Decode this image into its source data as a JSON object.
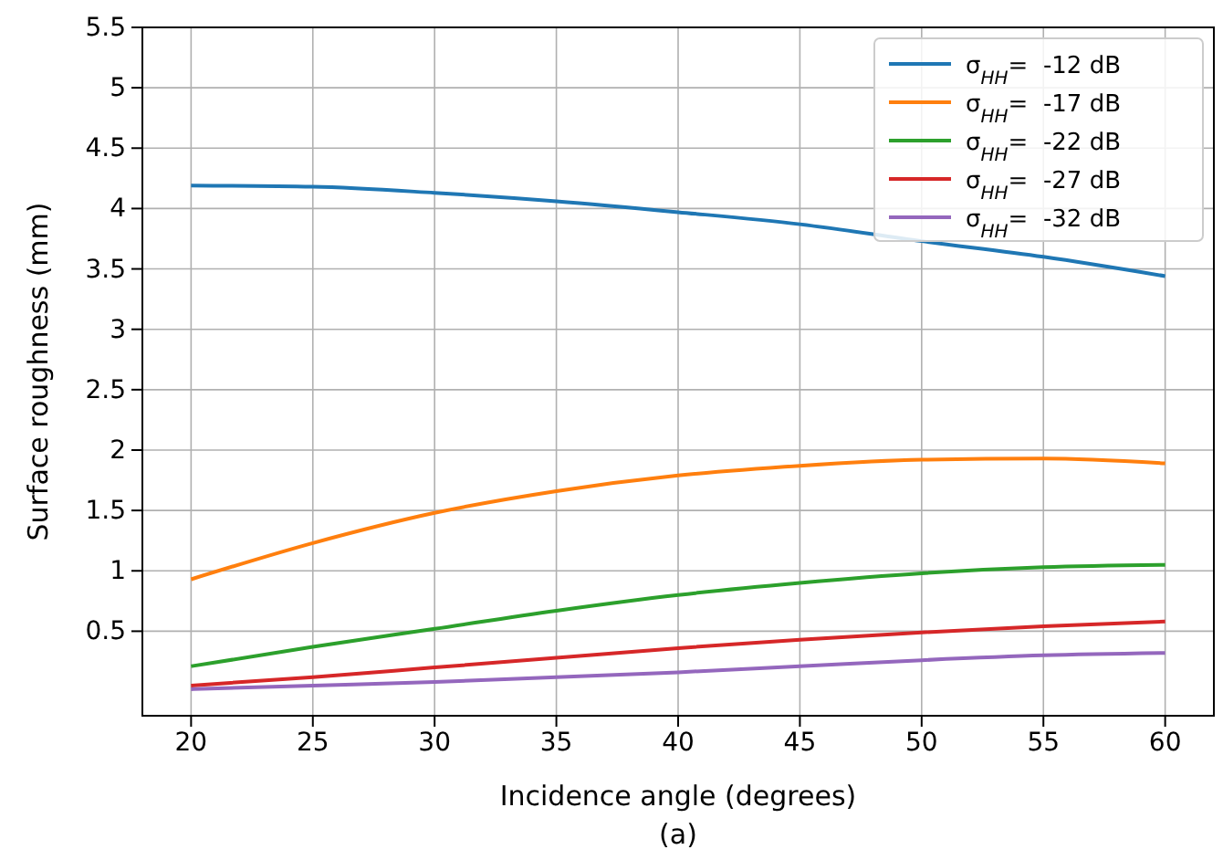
{
  "chart_data": {
    "type": "line",
    "xlabel": "Incidence angle (degrees)",
    "ylabel": "Surface roughness (mm)",
    "annotations": [
      "(a)"
    ],
    "x": [
      20,
      25,
      30,
      35,
      40,
      45,
      50,
      55,
      60
    ],
    "series": [
      {
        "name": "σ$_{HH}$=  -12 dB",
        "color": "#1f77b4",
        "values": [
          4.19,
          4.18,
          4.13,
          4.06,
          3.97,
          3.87,
          3.73,
          3.6,
          3.44
        ]
      },
      {
        "name": "σ$_{HH}$=  -17 dB",
        "color": "#ff7f0e",
        "values": [
          0.93,
          1.23,
          1.48,
          1.66,
          1.79,
          1.87,
          1.92,
          1.93,
          1.89
        ]
      },
      {
        "name": "σ$_{HH}$=  -22 dB",
        "color": "#2ca02c",
        "values": [
          0.21,
          0.37,
          0.52,
          0.67,
          0.8,
          0.9,
          0.98,
          1.03,
          1.05
        ]
      },
      {
        "name": "σ$_{HH}$=  -27 dB",
        "color": "#d62728",
        "values": [
          0.05,
          0.12,
          0.2,
          0.28,
          0.36,
          0.43,
          0.49,
          0.54,
          0.58
        ]
      },
      {
        "name": "σ$_{HH}$=  -32 dB",
        "color": "#9467bd",
        "values": [
          0.02,
          0.05,
          0.08,
          0.12,
          0.16,
          0.21,
          0.26,
          0.3,
          0.32
        ]
      }
    ],
    "xlim": [
      18,
      62
    ],
    "xticks": [
      20,
      25,
      30,
      35,
      40,
      45,
      50,
      55,
      60
    ],
    "ylim": [
      -0.2,
      5.5
    ],
    "yticks": [
      0.5,
      1.0,
      1.5,
      2.0,
      2.5,
      3.0,
      3.5,
      4.0,
      4.5,
      5.0,
      5.5
    ],
    "grid": true,
    "legend": "top right",
    "marker": "none",
    "line_style": "solid"
  }
}
